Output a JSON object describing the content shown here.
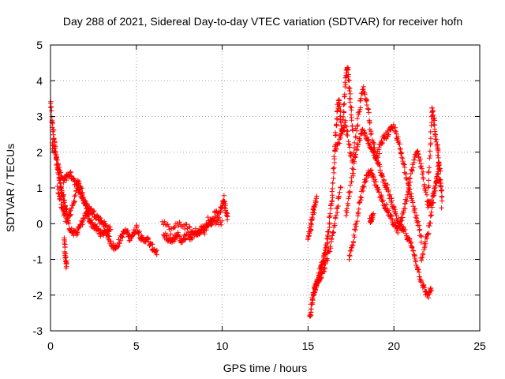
{
  "chart_data": {
    "type": "scatter",
    "title": "Day 288 of 2021, Sidereal Day-to-day VTEC variation (SDTVAR) for receiver hofn",
    "xlabel": "GPS time / hours",
    "ylabel": "SDTVAR / TECUs",
    "xlim": [
      0,
      25
    ],
    "ylim": [
      -3,
      5
    ],
    "xticks": [
      "0",
      "5",
      "10",
      "15",
      "20",
      "25"
    ],
    "yticks": [
      "-3",
      "-2",
      "-1",
      "0",
      "1",
      "2",
      "3",
      "4",
      "5"
    ],
    "grid": true,
    "marker": "plus",
    "color": "#ff0000",
    "series": [
      {
        "name": "SDTVAR",
        "segments": [
          {
            "x": [
              0.0,
              0.1,
              0.2,
              0.3,
              0.4,
              0.5,
              0.6,
              0.7,
              0.8,
              0.9,
              1.0,
              1.2,
              1.4,
              1.6,
              1.8,
              2.0,
              2.2,
              2.4,
              2.6,
              2.8,
              3.0,
              3.2,
              3.4,
              3.6,
              3.8,
              4.0,
              4.2,
              4.4,
              4.6,
              4.8,
              5.0,
              5.2,
              5.4,
              5.6,
              5.8,
              6.0,
              6.2
            ],
            "y": [
              3.4,
              2.8,
              2.4,
              2.0,
              1.6,
              1.3,
              1.0,
              0.8,
              0.6,
              0.4,
              0.2,
              0.3,
              0.7,
              1.2,
              0.9,
              0.5,
              0.2,
              0.0,
              -0.1,
              -0.2,
              -0.3,
              -0.2,
              -0.4,
              -0.6,
              -0.7,
              -0.5,
              -0.3,
              -0.2,
              -0.4,
              -0.3,
              -0.1,
              -0.3,
              -0.5,
              -0.4,
              -0.6,
              -0.7,
              -0.8
            ]
          },
          {
            "x": [
              0.1,
              0.3,
              0.5,
              0.7,
              0.9,
              1.1,
              1.3,
              1.5,
              1.7,
              1.9,
              2.1,
              2.3,
              2.5,
              2.7,
              2.9,
              3.1,
              3.3,
              3.5
            ],
            "y": [
              2.2,
              1.9,
              1.5,
              1.2,
              1.3,
              1.4,
              1.3,
              1.1,
              0.9,
              0.7,
              0.5,
              0.4,
              0.3,
              0.2,
              0.1,
              0.0,
              -0.1,
              -0.2
            ]
          },
          {
            "x": [
              0.4,
              0.6,
              0.8,
              1.0,
              1.2,
              1.4,
              1.6,
              1.8,
              2.0,
              2.2
            ],
            "y": [
              1.0,
              0.6,
              0.3,
              0.0,
              -0.2,
              -0.3,
              -0.2,
              0.0,
              0.2,
              0.3
            ]
          },
          {
            "x": [
              0.8,
              0.85,
              0.9,
              0.95
            ],
            "y": [
              -0.4,
              -0.8,
              -1.1,
              -1.2
            ]
          },
          {
            "x": [
              6.6,
              6.8,
              7.0,
              7.2,
              7.4,
              7.6,
              7.8,
              8.0,
              8.2,
              8.4,
              8.6,
              8.8,
              9.0,
              9.2,
              9.4,
              9.6,
              9.8,
              10.0,
              10.1,
              10.2,
              10.3
            ],
            "y": [
              -0.3,
              -0.4,
              -0.5,
              -0.4,
              -0.3,
              -0.5,
              -0.4,
              -0.3,
              -0.4,
              -0.2,
              -0.3,
              -0.1,
              -0.2,
              0.1,
              0.0,
              0.3,
              0.2,
              0.5,
              0.7,
              0.4,
              0.2
            ]
          },
          {
            "x": [
              6.5,
              7.0,
              7.5,
              8.0,
              8.5,
              9.0,
              9.5,
              10.0
            ],
            "y": [
              0.1,
              -0.2,
              0.0,
              -0.1,
              -0.3,
              -0.1,
              0.1,
              0.0
            ]
          },
          {
            "x": [
              15.1,
              15.2,
              15.3,
              15.4,
              15.5,
              15.6,
              15.7,
              15.8,
              15.9,
              16.0,
              16.1,
              16.2,
              16.3,
              16.4,
              16.5,
              16.6,
              16.7,
              16.8,
              16.9,
              17.0,
              17.1,
              17.2,
              17.3,
              17.4,
              17.5,
              17.6
            ],
            "y": [
              -2.6,
              -2.3,
              -2.0,
              -1.8,
              -1.7,
              -1.5,
              -1.3,
              -1.2,
              -1.0,
              -0.8,
              -0.5,
              -0.2,
              0.3,
              0.8,
              1.6,
              2.4,
              3.1,
              3.5,
              3.0,
              2.5,
              3.4,
              4.1,
              4.4,
              3.8,
              3.2,
              2.6
            ]
          },
          {
            "x": [
              15.0,
              15.1,
              15.2,
              15.3,
              15.4,
              15.5
            ],
            "y": [
              -0.4,
              -0.2,
              0.0,
              0.3,
              0.5,
              0.7
            ]
          },
          {
            "x": [
              15.3,
              15.5,
              15.7,
              15.9,
              16.1,
              16.3,
              16.5,
              16.7,
              16.9
            ],
            "y": [
              -2.0,
              -1.7,
              -1.5,
              -1.3,
              -1.0,
              -0.6,
              -0.2,
              0.4,
              1.0
            ]
          },
          {
            "x": [
              16.6,
              16.8,
              17.0,
              17.2,
              17.4,
              17.6,
              17.8,
              18.0,
              18.2,
              18.4,
              18.6,
              18.8,
              19.0,
              19.2,
              19.4,
              19.6,
              19.8,
              20.0,
              20.2,
              20.4,
              20.6,
              20.8,
              21.0,
              21.2,
              21.4,
              21.6,
              21.8,
              22.0,
              22.2
            ],
            "y": [
              2.0,
              2.3,
              2.6,
              2.8,
              2.2,
              1.6,
              2.6,
              3.2,
              3.8,
              3.5,
              2.8,
              2.2,
              1.8,
              1.5,
              1.2,
              1.0,
              0.7,
              0.4,
              0.1,
              -0.1,
              -0.2,
              -0.4,
              -0.6,
              -0.9,
              -1.3,
              -1.6,
              -1.9,
              -2.0,
              -1.8
            ]
          },
          {
            "x": [
              17.2,
              17.4,
              17.6,
              17.8,
              18.0,
              18.2,
              18.4,
              18.6,
              18.8,
              19.0,
              19.2,
              19.4,
              19.6,
              19.8,
              20.0,
              20.2,
              20.4,
              20.6,
              20.8,
              21.0,
              21.2,
              21.4,
              21.6
            ],
            "y": [
              0.2,
              0.8,
              1.4,
              2.0,
              2.4,
              2.6,
              2.4,
              2.2,
              2.0,
              1.8,
              2.2,
              2.4,
              2.5,
              2.6,
              2.7,
              2.4,
              2.0,
              1.6,
              1.2,
              0.8,
              0.4,
              0.0,
              -0.5
            ]
          },
          {
            "x": [
              17.4,
              17.6,
              17.8,
              18.0,
              18.2,
              18.4,
              18.6,
              18.8,
              19.0,
              19.2,
              19.4,
              19.6,
              19.8,
              20.0,
              20.2,
              20.4,
              20.6,
              20.8,
              21.0,
              21.2,
              21.4,
              21.6,
              21.8,
              22.0,
              22.2,
              22.4,
              22.6,
              22.8
            ],
            "y": [
              -1.0,
              -0.6,
              0.0,
              0.6,
              1.0,
              1.3,
              1.5,
              1.3,
              1.0,
              0.8,
              0.6,
              0.4,
              0.2,
              0.0,
              -0.2,
              0.0,
              0.4,
              0.8,
              1.4,
              1.8,
              2.0,
              1.6,
              1.0,
              0.5,
              0.6,
              1.0,
              1.4,
              0.8
            ]
          },
          {
            "x": [
              18.6,
              18.7,
              18.8
            ],
            "y": [
              0.1,
              0.15,
              0.2
            ]
          },
          {
            "x": [
              22.0,
              22.1,
              22.2,
              22.3,
              22.4,
              22.5,
              22.6,
              22.7,
              22.8
            ],
            "y": [
              1.0,
              2.0,
              3.2,
              3.0,
              2.6,
              2.2,
              1.8,
              1.4,
              0.5
            ]
          },
          {
            "x": [
              21.6,
              21.8,
              22.0,
              22.2,
              22.4,
              22.6
            ],
            "y": [
              -1.0,
              -0.6,
              -0.2,
              0.4,
              1.0,
              1.6
            ]
          }
        ]
      }
    ]
  }
}
